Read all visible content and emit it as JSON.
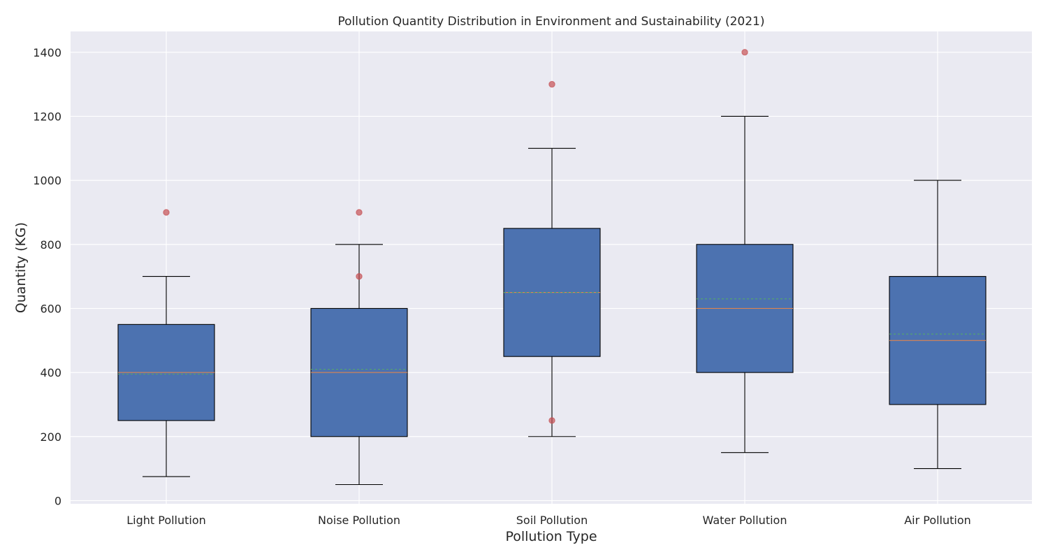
{
  "chart_data": {
    "type": "boxplot",
    "title": "Pollution Quantity Distribution in Environment and Sustainability (2021)",
    "xlabel": "Pollution Type",
    "ylabel": "Quantity (KG)",
    "ylim": [
      -10,
      1465
    ],
    "yticks": [
      0,
      200,
      400,
      600,
      800,
      1000,
      1200,
      1400
    ],
    "ytick_labels": [
      "0",
      "200",
      "400",
      "600",
      "800",
      "1000",
      "1200",
      "1400"
    ],
    "categories": [
      "Light Pollution",
      "Noise Pollution",
      "Soil Pollution",
      "Water Pollution",
      "Air Pollution"
    ],
    "boxes": [
      {
        "name": "Light Pollution",
        "whisker_low": 75,
        "q1": 250,
        "median": 400,
        "mean": 395,
        "q3": 550,
        "whisker_high": 700,
        "outliers": [
          900
        ]
      },
      {
        "name": "Noise Pollution",
        "whisker_low": 50,
        "q1": 200,
        "median": 400,
        "mean": 410,
        "q3": 600,
        "whisker_high": 800,
        "outliers": [
          900,
          700
        ]
      },
      {
        "name": "Soil Pollution",
        "whisker_low": 200,
        "q1": 450,
        "median": 650,
        "mean": 650,
        "q3": 850,
        "whisker_high": 1100,
        "outliers": [
          1300,
          250
        ]
      },
      {
        "name": "Water Pollution",
        "whisker_low": 150,
        "q1": 400,
        "median": 600,
        "mean": 630,
        "q3": 800,
        "whisker_high": 1200,
        "outliers": [
          1400
        ]
      },
      {
        "name": "Air Pollution",
        "whisker_low": 100,
        "q1": 300,
        "median": 500,
        "mean": 520,
        "q3": 700,
        "whisker_high": 1000,
        "outliers": []
      }
    ],
    "grid": true,
    "colors": {
      "background": "#EAEAF2",
      "grid": "#FFFFFF",
      "box_fill": "#4C72B0",
      "box_edge": "#000000",
      "median": "#DD8452",
      "mean": "#55A868",
      "outlier": "#C44E52",
      "text": "#262626"
    }
  }
}
